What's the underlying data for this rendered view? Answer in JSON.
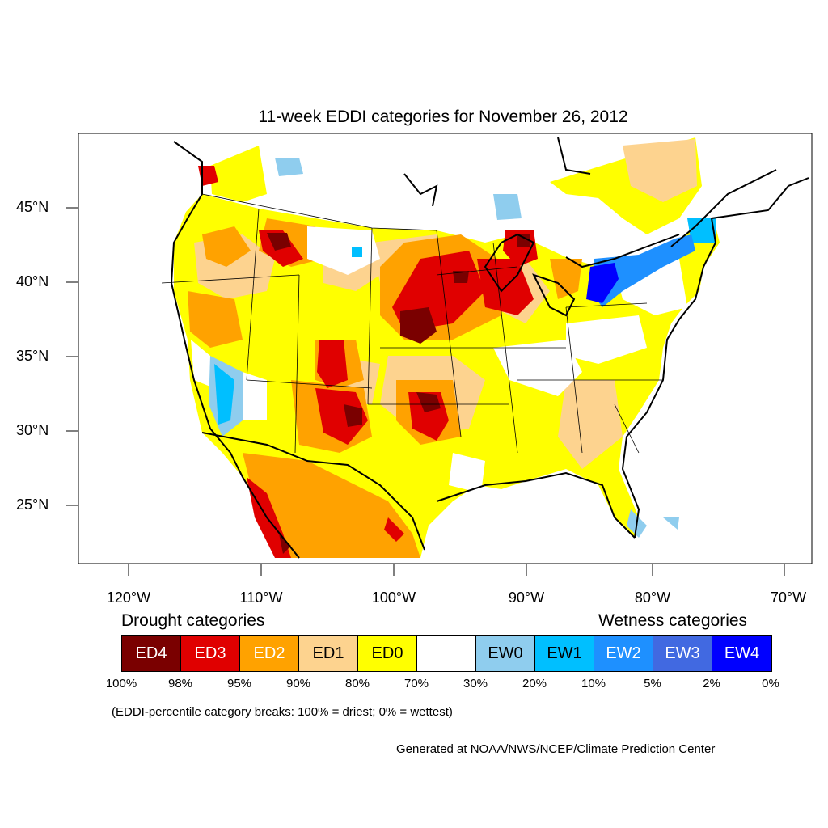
{
  "title": "11-week EDDI categories for November 26, 2012",
  "lat_labels": [
    "45°N",
    "40°N",
    "35°N",
    "30°N",
    "25°N"
  ],
  "lon_labels": [
    "120°W",
    "110°W",
    "100°W",
    "90°W",
    "80°W",
    "70°W"
  ],
  "legend": {
    "drought_heading": "Drought categories",
    "wetness_heading": "Wetness categories",
    "categories": [
      {
        "label": "ED4",
        "color": "#7a0000",
        "text_color": "#ffffff"
      },
      {
        "label": "ED3",
        "color": "#e00000",
        "text_color": "#ffffff"
      },
      {
        "label": "ED2",
        "color": "#ffa200",
        "text_color": "#ffffff"
      },
      {
        "label": "ED1",
        "color": "#fdd38f",
        "text_color": "#000000"
      },
      {
        "label": "ED0",
        "color": "#ffff00",
        "text_color": "#000000"
      },
      {
        "label": "",
        "color": "#ffffff",
        "text_color": "#000000"
      },
      {
        "label": "EW0",
        "color": "#8fcdee",
        "text_color": "#000000"
      },
      {
        "label": "EW1",
        "color": "#00bfff",
        "text_color": "#000000"
      },
      {
        "label": "EW2",
        "color": "#1e90ff",
        "text_color": "#ffffff"
      },
      {
        "label": "EW3",
        "color": "#4169e1",
        "text_color": "#ffffff"
      },
      {
        "label": "EW4",
        "color": "#0000ff",
        "text_color": "#ffffff"
      }
    ],
    "percent_breaks": [
      "100%",
      "98%",
      "95%",
      "90%",
      "80%",
      "70%",
      "30%",
      "20%",
      "10%",
      "5%",
      "2%",
      "0%"
    ]
  },
  "note": "(EDDI-percentile category breaks: 100% = driest; 0% = wettest)",
  "credit": "Generated at NOAA/NWS/NCEP/Climate Prediction Center"
}
